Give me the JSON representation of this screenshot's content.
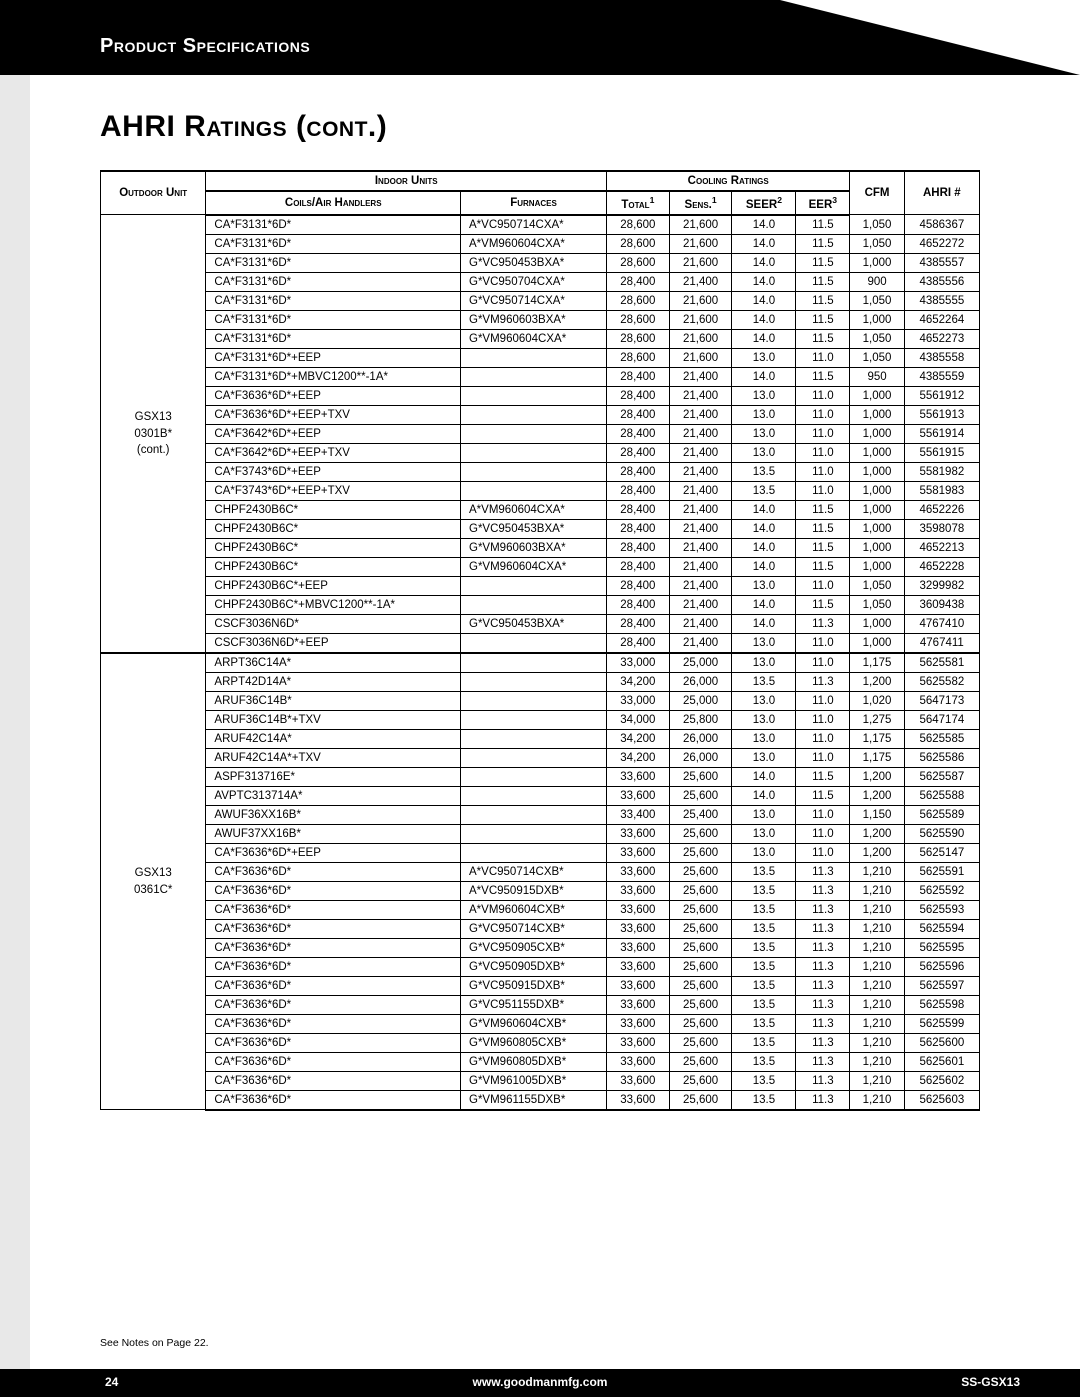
{
  "header_label": "Product Specifications",
  "main_title": "AHRI Ratings (cont.)",
  "footnote": "See Notes on Page 22.",
  "footer": {
    "page": "24",
    "url": "www.goodmanmfg.com",
    "code": "SS-GSX13"
  },
  "table": {
    "head": {
      "outdoor": "Outdoor Unit",
      "indoor": "Indoor Units",
      "cooling": "Cooling Ratings",
      "cfm": "CFM",
      "ahri": "AHRI #",
      "coils": "Coils/Air Handlers",
      "furnaces": "Furnaces",
      "total": "Total",
      "sens": "Sens.",
      "seer": "SEER",
      "eer": "EER"
    },
    "groups": [
      {
        "outdoor": "GSX13 0301B* (cont.)",
        "rows": [
          [
            "CA*F3131*6D*",
            "A*VC950714CXA*",
            "28,600",
            "21,600",
            "14.0",
            "11.5",
            "1,050",
            "4586367"
          ],
          [
            "CA*F3131*6D*",
            "A*VM960604CXA*",
            "28,600",
            "21,600",
            "14.0",
            "11.5",
            "1,050",
            "4652272"
          ],
          [
            "CA*F3131*6D*",
            "G*VC950453BXA*",
            "28,600",
            "21,600",
            "14.0",
            "11.5",
            "1,000",
            "4385557"
          ],
          [
            "CA*F3131*6D*",
            "G*VC950704CXA*",
            "28,400",
            "21,400",
            "14.0",
            "11.5",
            "900",
            "4385556"
          ],
          [
            "CA*F3131*6D*",
            "G*VC950714CXA*",
            "28,600",
            "21,600",
            "14.0",
            "11.5",
            "1,050",
            "4385555"
          ],
          [
            "CA*F3131*6D*",
            "G*VM960603BXA*",
            "28,600",
            "21,600",
            "14.0",
            "11.5",
            "1,000",
            "4652264"
          ],
          [
            "CA*F3131*6D*",
            "G*VM960604CXA*",
            "28,600",
            "21,600",
            "14.0",
            "11.5",
            "1,050",
            "4652273"
          ],
          [
            "CA*F3131*6D*+EEP",
            "",
            "28,600",
            "21,600",
            "13.0",
            "11.0",
            "1,050",
            "4385558"
          ],
          [
            "CA*F3131*6D*+MBVC1200**-1A*",
            "",
            "28,400",
            "21,400",
            "14.0",
            "11.5",
            "950",
            "4385559"
          ],
          [
            "CA*F3636*6D*+EEP",
            "",
            "28,400",
            "21,400",
            "13.0",
            "11.0",
            "1,000",
            "5561912"
          ],
          [
            "CA*F3636*6D*+EEP+TXV",
            "",
            "28,400",
            "21,400",
            "13.0",
            "11.0",
            "1,000",
            "5561913"
          ],
          [
            "CA*F3642*6D*+EEP",
            "",
            "28,400",
            "21,400",
            "13.0",
            "11.0",
            "1,000",
            "5561914"
          ],
          [
            "CA*F3642*6D*+EEP+TXV",
            "",
            "28,400",
            "21,400",
            "13.0",
            "11.0",
            "1,000",
            "5561915"
          ],
          [
            "CA*F3743*6D*+EEP",
            "",
            "28,400",
            "21,400",
            "13.5",
            "11.0",
            "1,000",
            "5581982"
          ],
          [
            "CA*F3743*6D*+EEP+TXV",
            "",
            "28,400",
            "21,400",
            "13.5",
            "11.0",
            "1,000",
            "5581983"
          ],
          [
            "CHPF2430B6C*",
            "A*VM960604CXA*",
            "28,400",
            "21,400",
            "14.0",
            "11.5",
            "1,000",
            "4652226"
          ],
          [
            "CHPF2430B6C*",
            "G*VC950453BXA*",
            "28,400",
            "21,400",
            "14.0",
            "11.5",
            "1,000",
            "3598078"
          ],
          [
            "CHPF2430B6C*",
            "G*VM960603BXA*",
            "28,400",
            "21,400",
            "14.0",
            "11.5",
            "1,000",
            "4652213"
          ],
          [
            "CHPF2430B6C*",
            "G*VM960604CXA*",
            "28,400",
            "21,400",
            "14.0",
            "11.5",
            "1,000",
            "4652228"
          ],
          [
            "CHPF2430B6C*+EEP",
            "",
            "28,400",
            "21,400",
            "13.0",
            "11.0",
            "1,050",
            "3299982"
          ],
          [
            "CHPF2430B6C*+MBVC1200**-1A*",
            "",
            "28,400",
            "21,400",
            "14.0",
            "11.5",
            "1,050",
            "3609438"
          ],
          [
            "CSCF3036N6D*",
            "G*VC950453BXA*",
            "28,400",
            "21,400",
            "14.0",
            "11.3",
            "1,000",
            "4767410"
          ],
          [
            "CSCF3036N6D*+EEP",
            "",
            "28,400",
            "21,400",
            "13.0",
            "11.0",
            "1,000",
            "4767411"
          ]
        ]
      },
      {
        "outdoor": "GSX13 0361C*",
        "rows": [
          [
            "ARPT36C14A*",
            "",
            "33,000",
            "25,000",
            "13.0",
            "11.0",
            "1,175",
            "5625581"
          ],
          [
            "ARPT42D14A*",
            "",
            "34,200",
            "26,000",
            "13.5",
            "11.3",
            "1,200",
            "5625582"
          ],
          [
            "ARUF36C14B*",
            "",
            "33,000",
            "25,000",
            "13.0",
            "11.0",
            "1,020",
            "5647173"
          ],
          [
            "ARUF36C14B*+TXV",
            "",
            "34,000",
            "25,800",
            "13.0",
            "11.0",
            "1,275",
            "5647174"
          ],
          [
            "ARUF42C14A*",
            "",
            "34,200",
            "26,000",
            "13.0",
            "11.0",
            "1,175",
            "5625585"
          ],
          [
            "ARUF42C14A*+TXV",
            "",
            "34,200",
            "26,000",
            "13.0",
            "11.0",
            "1,175",
            "5625586"
          ],
          [
            "ASPF313716E*",
            "",
            "33,600",
            "25,600",
            "14.0",
            "11.5",
            "1,200",
            "5625587"
          ],
          [
            "AVPTC313714A*",
            "",
            "33,600",
            "25,600",
            "14.0",
            "11.5",
            "1,200",
            "5625588"
          ],
          [
            "AWUF36XX16B*",
            "",
            "33,400",
            "25,400",
            "13.0",
            "11.0",
            "1,150",
            "5625589"
          ],
          [
            "AWUF37XX16B*",
            "",
            "33,600",
            "25,600",
            "13.0",
            "11.0",
            "1,200",
            "5625590"
          ],
          [
            "CA*F3636*6D*+EEP",
            "",
            "33,600",
            "25,600",
            "13.0",
            "11.0",
            "1,200",
            "5625147"
          ],
          [
            "CA*F3636*6D*",
            "A*VC950714CXB*",
            "33,600",
            "25,600",
            "13.5",
            "11.3",
            "1,210",
            "5625591"
          ],
          [
            "CA*F3636*6D*",
            "A*VC950915DXB*",
            "33,600",
            "25,600",
            "13.5",
            "11.3",
            "1,210",
            "5625592"
          ],
          [
            "CA*F3636*6D*",
            "A*VM960604CXB*",
            "33,600",
            "25,600",
            "13.5",
            "11.3",
            "1,210",
            "5625593"
          ],
          [
            "CA*F3636*6D*",
            "G*VC950714CXB*",
            "33,600",
            "25,600",
            "13.5",
            "11.3",
            "1,210",
            "5625594"
          ],
          [
            "CA*F3636*6D*",
            "G*VC950905CXB*",
            "33,600",
            "25,600",
            "13.5",
            "11.3",
            "1,210",
            "5625595"
          ],
          [
            "CA*F3636*6D*",
            "G*VC950905DXB*",
            "33,600",
            "25,600",
            "13.5",
            "11.3",
            "1,210",
            "5625596"
          ],
          [
            "CA*F3636*6D*",
            "G*VC950915DXB*",
            "33,600",
            "25,600",
            "13.5",
            "11.3",
            "1,210",
            "5625597"
          ],
          [
            "CA*F3636*6D*",
            "G*VC951155DXB*",
            "33,600",
            "25,600",
            "13.5",
            "11.3",
            "1,210",
            "5625598"
          ],
          [
            "CA*F3636*6D*",
            "G*VM960604CXB*",
            "33,600",
            "25,600",
            "13.5",
            "11.3",
            "1,210",
            "5625599"
          ],
          [
            "CA*F3636*6D*",
            "G*VM960805CXB*",
            "33,600",
            "25,600",
            "13.5",
            "11.3",
            "1,210",
            "5625600"
          ],
          [
            "CA*F3636*6D*",
            "G*VM960805DXB*",
            "33,600",
            "25,600",
            "13.5",
            "11.3",
            "1,210",
            "5625601"
          ],
          [
            "CA*F3636*6D*",
            "G*VM961005DXB*",
            "33,600",
            "25,600",
            "13.5",
            "11.3",
            "1,210",
            "5625602"
          ],
          [
            "CA*F3636*6D*",
            "G*VM961155DXB*",
            "33,600",
            "25,600",
            "13.5",
            "11.3",
            "1,210",
            "5625603"
          ]
        ]
      }
    ]
  }
}
